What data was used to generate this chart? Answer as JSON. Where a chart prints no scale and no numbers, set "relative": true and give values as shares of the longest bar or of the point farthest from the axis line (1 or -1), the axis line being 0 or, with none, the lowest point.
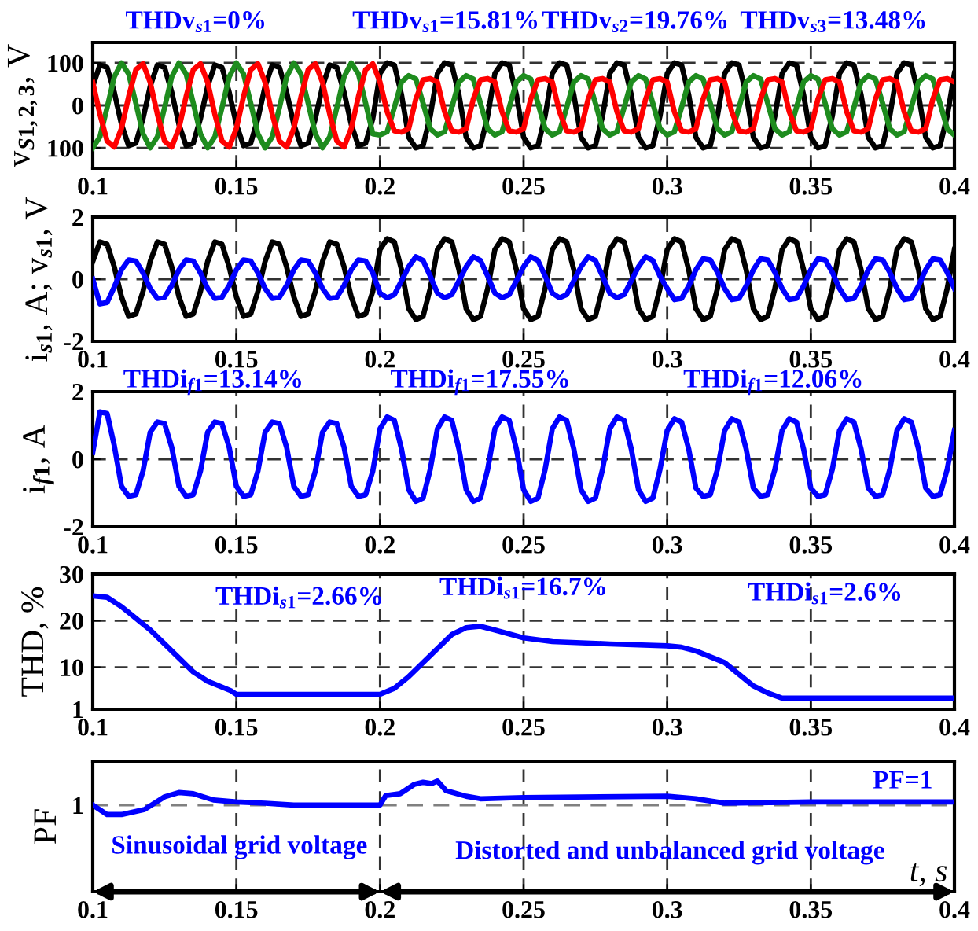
{
  "chart_data": [
    {
      "type": "line",
      "ylabel": "v$_{S1,2,3}$, V",
      "xlim": [
        0.1,
        0.4
      ],
      "xticks": [
        0.1,
        0.15,
        0.2,
        0.25,
        0.3,
        0.35,
        0.4
      ],
      "ylim": [
        -148,
        148
      ],
      "yticks": [
        {
          "value": -100,
          "label": "100"
        },
        0,
        100
      ],
      "grid": true,
      "x": [
        0.1,
        0.1025,
        0.105,
        0.1075,
        0.11,
        0.1125,
        0.115,
        0.1175,
        0.12,
        0.1225,
        0.125,
        0.1275,
        0.13,
        0.1325,
        0.135,
        0.1375,
        0.14,
        0.1425,
        0.145,
        0.1475,
        0.15,
        0.1525,
        0.155,
        0.1575,
        0.16,
        0.1625,
        0.165,
        0.1675,
        0.17,
        0.1725,
        0.175,
        0.1775,
        0.18,
        0.1825,
        0.185,
        0.1875,
        0.19,
        0.1925,
        0.195,
        0.1975,
        0.2,
        0.2025,
        0.205,
        0.2075,
        0.21,
        0.2125,
        0.215,
        0.2175,
        0.22,
        0.2225,
        0.225,
        0.2275,
        0.23,
        0.2325,
        0.235,
        0.2375,
        0.24,
        0.2425,
        0.245,
        0.2475,
        0.25,
        0.2525,
        0.255,
        0.2575,
        0.26,
        0.2625,
        0.265,
        0.2675,
        0.27,
        0.2725,
        0.275,
        0.2775,
        0.28,
        0.2825,
        0.285,
        0.2875,
        0.29,
        0.2925,
        0.295,
        0.2975,
        0.3,
        0.3025,
        0.305,
        0.3075,
        0.31,
        0.3125,
        0.315,
        0.3175,
        0.32,
        0.3225,
        0.325,
        0.3275,
        0.33,
        0.3325,
        0.335,
        0.3375,
        0.34,
        0.3425,
        0.345,
        0.3475,
        0.35,
        0.3525,
        0.355,
        0.3575,
        0.36,
        0.3625,
        0.365,
        0.3675,
        0.37,
        0.3725,
        0.375,
        0.3775,
        0.38,
        0.3825,
        0.385,
        0.3875,
        0.39,
        0.3925,
        0.395,
        0.3975,
        0.4
      ],
      "series": [
        {
          "color": "#000000",
          "values": [
            45,
            95,
            89,
            31,
            -45,
            -95,
            -89,
            -31,
            45,
            95,
            89,
            31,
            -45,
            -95,
            -89,
            -31,
            45,
            95,
            89,
            31,
            -45,
            -95,
            -89,
            -31,
            45,
            95,
            89,
            31,
            -45,
            -95,
            -89,
            -31,
            45,
            95,
            89,
            31,
            -45,
            -95,
            -89,
            -31,
            75,
            100,
            95,
            25,
            -75,
            -100,
            -95,
            -25,
            75,
            100,
            95,
            25,
            -75,
            -100,
            -95,
            -25,
            75,
            100,
            95,
            25,
            -75,
            -100,
            -95,
            -25,
            75,
            100,
            95,
            25,
            -75,
            -100,
            -95,
            -25,
            75,
            100,
            95,
            25,
            -75,
            -100,
            -95,
            -25,
            75,
            100,
            95,
            25,
            -75,
            -100,
            -95,
            -25,
            75,
            100,
            95,
            25,
            -75,
            -100,
            -95,
            -25,
            75,
            100,
            95,
            25,
            -75,
            -100,
            -95,
            -25,
            75,
            100,
            95,
            25,
            -75,
            -100,
            -95,
            -25,
            75,
            100,
            95,
            25,
            -75,
            -100,
            -95,
            -25,
            75
          ]
        },
        {
          "color": "#1e8c1e",
          "values": [
            -100,
            -74,
            -5,
            67,
            100,
            74,
            5,
            -67,
            -100,
            -74,
            -5,
            67,
            100,
            74,
            5,
            -67,
            -100,
            -74,
            -5,
            67,
            100,
            74,
            5,
            -67,
            -100,
            -74,
            -5,
            67,
            100,
            74,
            5,
            -67,
            -100,
            -74,
            -5,
            67,
            100,
            74,
            5,
            -67,
            -70,
            -62,
            -5,
            55,
            70,
            62,
            5,
            -55,
            -70,
            -62,
            -5,
            55,
            70,
            62,
            5,
            -55,
            -70,
            -62,
            -5,
            55,
            70,
            62,
            5,
            -55,
            -70,
            -62,
            -5,
            55,
            70,
            62,
            5,
            -55,
            -70,
            -62,
            -5,
            55,
            70,
            62,
            5,
            -55,
            -70,
            -62,
            -5,
            55,
            70,
            62,
            5,
            -55,
            -70,
            -62,
            -5,
            55,
            70,
            62,
            5,
            -55,
            -70,
            -62,
            -5,
            55,
            70,
            62,
            5,
            -55,
            -70,
            -62,
            -5,
            55,
            70,
            62,
            5,
            -55,
            -70,
            -62,
            -5,
            55,
            70,
            62,
            5,
            -55,
            -70
          ]
        },
        {
          "color": "#ff0000",
          "values": [
            54,
            -21,
            -84,
            -98,
            -54,
            21,
            84,
            98,
            54,
            -21,
            -84,
            -98,
            -54,
            21,
            84,
            98,
            54,
            -21,
            -84,
            -98,
            -54,
            21,
            84,
            98,
            54,
            -21,
            -84,
            -98,
            -54,
            21,
            84,
            98,
            54,
            -21,
            -84,
            -98,
            -54,
            21,
            84,
            98,
            55,
            -15,
            -60,
            -63,
            -55,
            15,
            60,
            63,
            55,
            -15,
            -60,
            -63,
            -55,
            15,
            60,
            63,
            55,
            -15,
            -60,
            -63,
            -55,
            15,
            60,
            63,
            55,
            -15,
            -60,
            -63,
            -55,
            15,
            60,
            63,
            55,
            -15,
            -60,
            -63,
            -55,
            15,
            60,
            63,
            55,
            -15,
            -60,
            -63,
            -55,
            15,
            60,
            63,
            55,
            -15,
            -60,
            -63,
            -55,
            15,
            60,
            63,
            55,
            -15,
            -60,
            -63,
            -55,
            15,
            60,
            63,
            55,
            -15,
            -60,
            -63,
            -55,
            15,
            60,
            63,
            55,
            -15,
            -60,
            -63,
            -55,
            15,
            60,
            63,
            55
          ]
        }
      ],
      "annotations": [
        "THDv$_{s1}$=0%",
        "THDv$_{s1}$=15.81%",
        "THDv$_{s2}$=19.76%",
        "THDv$_{s3}$=13.48%"
      ]
    },
    {
      "type": "line",
      "ylabel": "i$_{s1}$, A; v$_{s1}$, V",
      "xlim": [
        0.1,
        0.4
      ],
      "xticks": [
        0.1,
        0.15,
        0.2,
        0.25,
        0.3,
        0.35,
        0.4
      ],
      "ylim": [
        -2,
        2
      ],
      "yticks": [
        -2,
        0,
        2
      ],
      "grid": true,
      "x": [
        0.1,
        0.1025,
        0.105,
        0.1075,
        0.11,
        0.1125,
        0.115,
        0.1175,
        0.12,
        0.1225,
        0.125,
        0.1275,
        0.13,
        0.1325,
        0.135,
        0.1375,
        0.14,
        0.1425,
        0.145,
        0.1475,
        0.15,
        0.1525,
        0.155,
        0.1575,
        0.16,
        0.1625,
        0.165,
        0.1675,
        0.17,
        0.1725,
        0.175,
        0.1775,
        0.18,
        0.1825,
        0.185,
        0.1875,
        0.19,
        0.1925,
        0.195,
        0.1975,
        0.2,
        0.2025,
        0.205,
        0.2075,
        0.21,
        0.2125,
        0.215,
        0.2175,
        0.22,
        0.2225,
        0.225,
        0.2275,
        0.23,
        0.2325,
        0.235,
        0.2375,
        0.24,
        0.2425,
        0.245,
        0.2475,
        0.25,
        0.2525,
        0.255,
        0.2575,
        0.26,
        0.2625,
        0.265,
        0.2675,
        0.27,
        0.2725,
        0.275,
        0.2775,
        0.28,
        0.2825,
        0.285,
        0.2875,
        0.29,
        0.2925,
        0.295,
        0.2975,
        0.3,
        0.3025,
        0.305,
        0.3075,
        0.31,
        0.3125,
        0.315,
        0.3175,
        0.32,
        0.3225,
        0.325,
        0.3275,
        0.33,
        0.3325,
        0.335,
        0.3375,
        0.34,
        0.3425,
        0.345,
        0.3475,
        0.35,
        0.3525,
        0.355,
        0.3575,
        0.36,
        0.3625,
        0.365,
        0.3675,
        0.37,
        0.3725,
        0.375,
        0.3775,
        0.38,
        0.3825,
        0.385,
        0.3875,
        0.39,
        0.3925,
        0.395,
        0.3975,
        0.4
      ],
      "series": [
        {
          "color": "#000000",
          "values": [
            0.57,
            1.2,
            1.12,
            0.39,
            -0.57,
            -1.2,
            -1.12,
            -0.39,
            0.57,
            1.2,
            1.12,
            0.39,
            -0.57,
            -1.2,
            -1.12,
            -0.39,
            0.57,
            1.2,
            1.12,
            0.39,
            -0.57,
            -1.2,
            -1.12,
            -0.39,
            0.57,
            1.2,
            1.12,
            0.39,
            -0.57,
            -1.2,
            -1.12,
            -0.39,
            0.57,
            1.2,
            1.12,
            0.39,
            -0.57,
            -1.2,
            -1.12,
            -0.39,
            0.95,
            1.3,
            1.2,
            0.3,
            -0.95,
            -1.3,
            -1.2,
            -0.3,
            0.95,
            1.3,
            1.2,
            0.3,
            -0.95,
            -1.3,
            -1.2,
            -0.3,
            0.95,
            1.3,
            1.2,
            0.3,
            -0.95,
            -1.3,
            -1.2,
            -0.3,
            0.95,
            1.3,
            1.2,
            0.3,
            -0.95,
            -1.3,
            -1.2,
            -0.3,
            0.95,
            1.3,
            1.2,
            0.3,
            -0.95,
            -1.3,
            -1.2,
            -0.3,
            0.95,
            1.3,
            1.2,
            0.3,
            -0.95,
            -1.3,
            -1.2,
            -0.3,
            0.95,
            1.3,
            1.2,
            0.3,
            -0.95,
            -1.3,
            -1.2,
            -0.3,
            0.95,
            1.3,
            1.2,
            0.3,
            -0.95,
            -1.3,
            -1.2,
            -0.3,
            0.95,
            1.3,
            1.2,
            0.3,
            -0.95,
            -1.3,
            -1.2,
            -0.3,
            0.95,
            1.3,
            1.2,
            0.3,
            -0.95,
            -1.3,
            -1.2,
            -0.3,
            0.95
          ]
        },
        {
          "color": "#0000ff",
          "values": [
            0,
            -0.8,
            -0.75,
            -0.25,
            0.3,
            0.62,
            0.58,
            0.2,
            -0.3,
            -0.62,
            -0.58,
            -0.2,
            0.3,
            0.62,
            0.58,
            0.2,
            -0.3,
            -0.62,
            -0.58,
            -0.2,
            0.3,
            0.62,
            0.58,
            0.2,
            -0.3,
            -0.62,
            -0.58,
            -0.2,
            0.3,
            0.62,
            0.58,
            0.2,
            -0.3,
            -0.62,
            -0.58,
            -0.2,
            0.3,
            0.62,
            0.58,
            0.2,
            -0.45,
            -0.6,
            -0.5,
            -0.05,
            0.4,
            0.72,
            0.6,
            0.1,
            -0.45,
            -0.6,
            -0.5,
            -0.05,
            0.4,
            0.72,
            0.6,
            0.1,
            -0.45,
            -0.6,
            -0.5,
            -0.05,
            0.4,
            0.72,
            0.6,
            0.1,
            -0.45,
            -0.6,
            -0.5,
            -0.05,
            0.4,
            0.72,
            0.6,
            0.1,
            -0.45,
            -0.6,
            -0.5,
            -0.05,
            0.4,
            0.72,
            0.6,
            0.1,
            -0.3,
            -0.66,
            -0.62,
            -0.22,
            0.3,
            0.66,
            0.62,
            0.22,
            -0.3,
            -0.66,
            -0.62,
            -0.22,
            0.3,
            0.66,
            0.62,
            0.22,
            -0.3,
            -0.66,
            -0.62,
            -0.22,
            0.3,
            0.66,
            0.62,
            0.22,
            -0.3,
            -0.66,
            -0.62,
            -0.22,
            0.3,
            0.66,
            0.62,
            0.22,
            -0.3,
            -0.66,
            -0.62,
            -0.22,
            0.3,
            0.66,
            0.62,
            0.22,
            -0.3
          ]
        }
      ]
    },
    {
      "type": "line",
      "ylabel": "i$_{f1}$, A",
      "xlim": [
        0.1,
        0.4
      ],
      "xticks": [
        0.1,
        0.15,
        0.2,
        0.25,
        0.3,
        0.35,
        0.4
      ],
      "ylim": [
        -2,
        2
      ],
      "yticks": [
        -2,
        0,
        2
      ],
      "grid": true,
      "x": [
        0.1,
        0.1025,
        0.105,
        0.1075,
        0.11,
        0.1125,
        0.115,
        0.1175,
        0.12,
        0.1225,
        0.125,
        0.1275,
        0.13,
        0.1325,
        0.135,
        0.1375,
        0.14,
        0.1425,
        0.145,
        0.1475,
        0.15,
        0.1525,
        0.155,
        0.1575,
        0.16,
        0.1625,
        0.165,
        0.1675,
        0.17,
        0.1725,
        0.175,
        0.1775,
        0.18,
        0.1825,
        0.185,
        0.1875,
        0.19,
        0.1925,
        0.195,
        0.1975,
        0.2,
        0.2025,
        0.205,
        0.2075,
        0.21,
        0.2125,
        0.215,
        0.2175,
        0.22,
        0.2225,
        0.225,
        0.2275,
        0.23,
        0.2325,
        0.235,
        0.2375,
        0.24,
        0.2425,
        0.245,
        0.2475,
        0.25,
        0.2525,
        0.255,
        0.2575,
        0.26,
        0.2625,
        0.265,
        0.2675,
        0.27,
        0.2725,
        0.275,
        0.2775,
        0.28,
        0.2825,
        0.285,
        0.2875,
        0.29,
        0.2925,
        0.295,
        0.2975,
        0.3,
        0.3025,
        0.305,
        0.3075,
        0.31,
        0.3125,
        0.315,
        0.3175,
        0.32,
        0.3225,
        0.325,
        0.3275,
        0.33,
        0.3325,
        0.335,
        0.3375,
        0.34,
        0.3425,
        0.345,
        0.3475,
        0.35,
        0.3525,
        0.355,
        0.3575,
        0.36,
        0.3625,
        0.365,
        0.3675,
        0.37,
        0.3725,
        0.375,
        0.3775,
        0.38,
        0.3825,
        0.385,
        0.3875,
        0.39,
        0.3925,
        0.395,
        0.3975,
        0.4
      ],
      "series": [
        {
          "color": "#0000ff",
          "values": [
            0.2,
            1.4,
            1.35,
            0.4,
            -0.8,
            -1.1,
            -1.05,
            -0.35,
            0.8,
            1.1,
            1.05,
            0.35,
            -0.8,
            -1.1,
            -1.05,
            -0.35,
            0.8,
            1.1,
            1.05,
            0.35,
            -0.8,
            -1.1,
            -1.05,
            -0.35,
            0.8,
            1.1,
            1.05,
            0.35,
            -0.8,
            -1.1,
            -1.05,
            -0.35,
            0.8,
            1.1,
            1.05,
            0.35,
            -0.8,
            -1.1,
            -1.05,
            -0.35,
            0.9,
            1.25,
            1.15,
            0.3,
            -0.9,
            -1.25,
            -1.15,
            -0.3,
            0.9,
            1.25,
            1.15,
            0.3,
            -0.9,
            -1.25,
            -1.15,
            -0.3,
            0.9,
            1.25,
            1.15,
            0.3,
            -0.9,
            -1.25,
            -1.15,
            -0.3,
            0.9,
            1.25,
            1.15,
            0.3,
            -0.9,
            -1.25,
            -1.15,
            -0.3,
            0.9,
            1.25,
            1.15,
            0.3,
            -0.9,
            -1.25,
            -1.15,
            -0.3,
            0.85,
            1.2,
            1.1,
            0.3,
            -0.85,
            -1.1,
            -1.05,
            -0.3,
            0.85,
            1.2,
            1.1,
            0.3,
            -0.85,
            -1.1,
            -1.05,
            -0.3,
            0.85,
            1.2,
            1.1,
            0.3,
            -0.85,
            -1.1,
            -1.05,
            -0.3,
            0.85,
            1.2,
            1.1,
            0.3,
            -0.85,
            -1.1,
            -1.05,
            -0.3,
            0.85,
            1.2,
            1.1,
            0.3,
            -0.85,
            -1.1,
            -1.05,
            -0.3,
            0.85
          ]
        }
      ],
      "annotations": [
        "THDi$_{f1}$=13.14%",
        "THDi$_{f1}$=17.55%",
        "THDi$_{f1}$=12.06%"
      ]
    },
    {
      "type": "line",
      "ylabel": "THD, %",
      "xlim": [
        0.1,
        0.4
      ],
      "xticks": [
        0.1,
        0.15,
        0.2,
        0.25,
        0.3,
        0.35,
        0.4
      ],
      "ylim": [
        1,
        30
      ],
      "yticks": [
        1,
        10,
        20,
        30
      ],
      "grid": true,
      "x": [
        0.1,
        0.105,
        0.11,
        0.12,
        0.13,
        0.135,
        0.14,
        0.148,
        0.15,
        0.2,
        0.205,
        0.21,
        0.22,
        0.225,
        0.23,
        0.235,
        0.24,
        0.25,
        0.26,
        0.28,
        0.3,
        0.305,
        0.31,
        0.32,
        0.33,
        0.335,
        0.34,
        0.4
      ],
      "series": [
        {
          "color": "#0000ff",
          "values": [
            25.3,
            25,
            23,
            18,
            12,
            9,
            7,
            5,
            4.2,
            4.2,
            5.5,
            8,
            14,
            17,
            18.5,
            18.8,
            18,
            16.3,
            15.5,
            15,
            14.6,
            14.3,
            13.5,
            11,
            6,
            4.5,
            3.4,
            3.4
          ]
        }
      ],
      "annotations": [
        "THDi$_{s1}$=2.66%",
        "THDi$_{s1}$=16.7%",
        "THDi$_{s1}$=2.6%"
      ]
    },
    {
      "type": "line",
      "ylabel": "PF",
      "xlabel": "t, s",
      "xlim": [
        0.1,
        0.4
      ],
      "xticks": [
        0.1,
        0.15,
        0.2,
        0.25,
        0.3,
        0.35,
        0.4
      ],
      "relative": true,
      "grid": "x",
      "x": [
        0.1,
        0.105,
        0.11,
        0.118,
        0.125,
        0.13,
        0.135,
        0.142,
        0.15,
        0.16,
        0.17,
        0.2,
        0.202,
        0.207,
        0.212,
        0.215,
        0.218,
        0.22,
        0.223,
        0.23,
        0.235,
        0.25,
        0.3,
        0.31,
        0.32,
        0.35,
        0.4
      ],
      "series": [
        {
          "color": "#0000ff",
          "values": [
            0.783,
            0.697,
            0.697,
            0.743,
            0.857,
            0.897,
            0.886,
            0.829,
            0.811,
            0.8,
            0.783,
            0.783,
            0.869,
            0.886,
            0.971,
            0.989,
            0.977,
            1.0,
            0.914,
            0.863,
            0.84,
            0.851,
            0.863,
            0.84,
            0.8,
            0.811,
            0.811
          ]
        }
      ],
      "ref_lines": [
        {
          "axis": "y",
          "value": 0.783,
          "label": "1",
          "color": "#808080",
          "line_style": "dashed"
        }
      ],
      "annotations": [
        "PF=1",
        "Sinusoidal grid voltage",
        "Distorted and unbalanced grid voltage"
      ]
    }
  ]
}
